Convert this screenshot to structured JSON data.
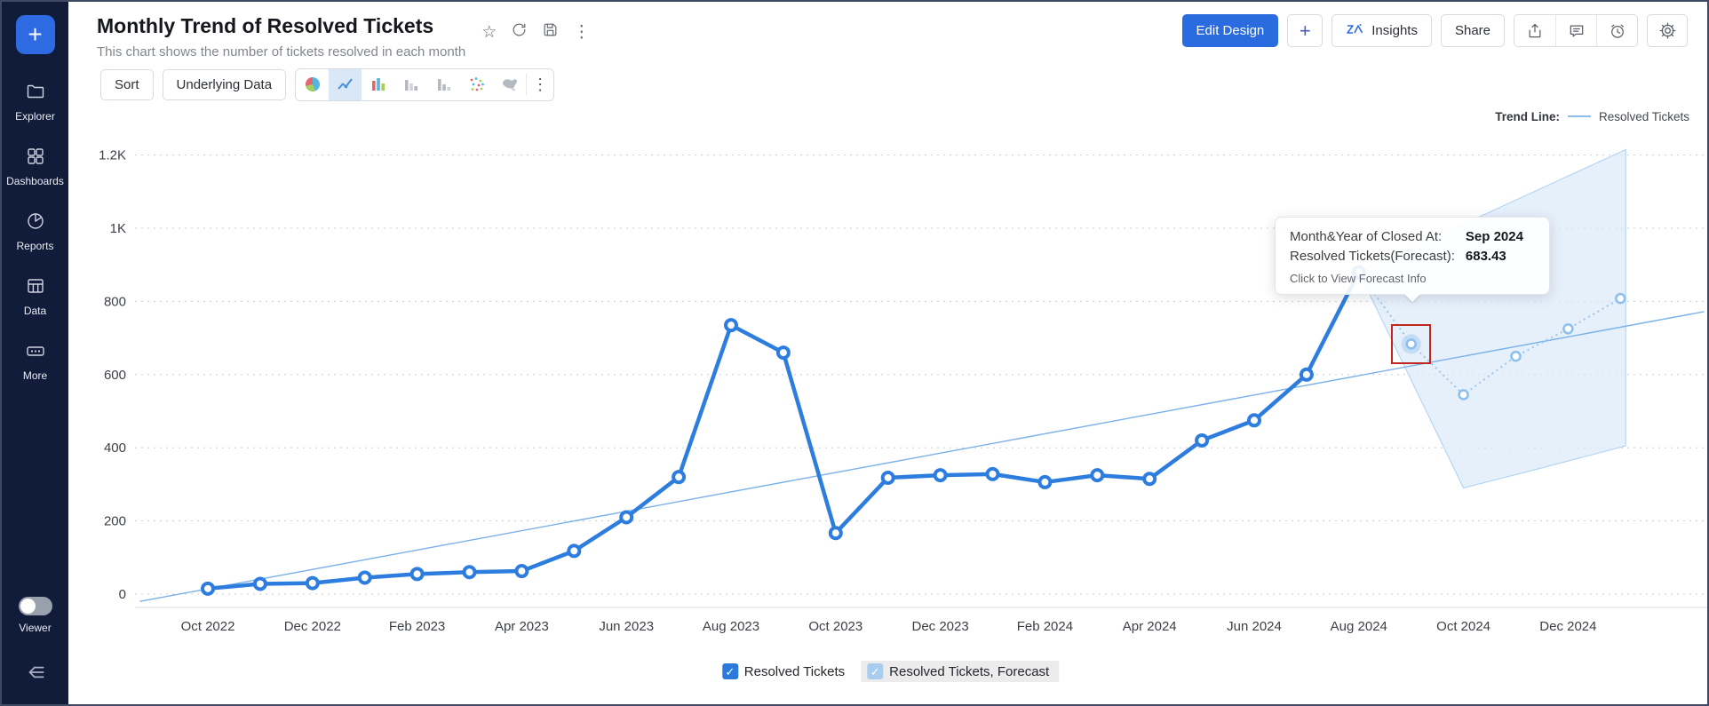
{
  "icons": {
    "star": "☆",
    "kebab": "⋮",
    "more_menu": "⋮",
    "check": "✓"
  },
  "sidebar": {
    "add_label": "+",
    "items": [
      {
        "id": "explorer",
        "label": "Explorer"
      },
      {
        "id": "dashboards",
        "label": "Dashboards"
      },
      {
        "id": "reports",
        "label": "Reports"
      },
      {
        "id": "data",
        "label": "Data"
      },
      {
        "id": "more",
        "label": "More"
      }
    ],
    "viewer_label": "Viewer"
  },
  "header": {
    "title": "Monthly Trend of Resolved Tickets",
    "subtitle": "This chart shows the number of tickets resolved in each month",
    "actions": {
      "edit_design": "Edit Design",
      "add": "+",
      "insights": "Insights",
      "share": "Share"
    }
  },
  "toolbar": {
    "sort_label": "Sort",
    "underlying_data_label": "Underlying Data"
  },
  "trend_line_legend": {
    "label": "Trend Line:",
    "series": "Resolved Tickets"
  },
  "tooltip": {
    "row1_label": "Month&Year of Closed At:",
    "row1_value": "Sep 2024",
    "row2_label": "Resolved Tickets(Forecast):",
    "row2_value": "683.43",
    "footer": "Click to View Forecast Info"
  },
  "legend": {
    "items": [
      "Resolved Tickets",
      "Resolved Tickets, Forecast"
    ]
  },
  "colors": {
    "accent": "#2a6bdf",
    "line": "#2d7dde",
    "forecast": "#9cc5ec",
    "forecast_marker": "#8fc0ec",
    "band": "#dbeafa",
    "trend": "#7ab1e8",
    "selection_box": "#c2271f",
    "sidebar_bg": "#101c3a",
    "checkbox_full": "#2b7bdd",
    "checkbox_light": "#a9cdf1"
  },
  "chart_data": {
    "type": "line",
    "title": "Monthly Trend of Resolved Tickets",
    "xlabel": "Month&Year of Closed At",
    "ylabel": "Resolved Tickets",
    "ylim": [
      0,
      1200
    ],
    "grid": true,
    "legend_position": "bottom",
    "months": [
      "Oct 2022",
      "Nov 2022",
      "Dec 2022",
      "Jan 2023",
      "Feb 2023",
      "Mar 2023",
      "Apr 2023",
      "May 2023",
      "Jun 2023",
      "Jul 2023",
      "Aug 2023",
      "Sep 2023",
      "Oct 2023",
      "Nov 2023",
      "Dec 2023",
      "Jan 2024",
      "Feb 2024",
      "Mar 2024",
      "Apr 2024",
      "May 2024",
      "Jun 2024",
      "Jul 2024",
      "Aug 2024",
      "Sep 2024",
      "Oct 2024",
      "Nov 2024",
      "Dec 2024",
      "Jan 2025"
    ],
    "series": [
      {
        "name": "Resolved Tickets",
        "style": "solid",
        "values": [
          15,
          28,
          30,
          45,
          55,
          60,
          63,
          118,
          210,
          320,
          735,
          660,
          167,
          318,
          325,
          328,
          306,
          325,
          315,
          420,
          475,
          600,
          880
        ]
      },
      {
        "name": "Resolved Tickets, Forecast",
        "style": "dotted",
        "points": [
          [
            22,
            880
          ],
          [
            23,
            683.43
          ],
          [
            24,
            545
          ],
          [
            25,
            650
          ],
          [
            26,
            725
          ],
          [
            27,
            808
          ]
        ]
      }
    ],
    "trend_line": {
      "name": "Trend Line (Resolved Tickets)",
      "from": [
        -1.3,
        -20
      ],
      "to": [
        28.6,
        772
      ]
    },
    "forecast_band": {
      "polygon": [
        [
          22,
          880
        ],
        [
          27.1,
          1215
        ],
        [
          27.1,
          405
        ],
        [
          25.5,
          345
        ],
        [
          24,
          290
        ]
      ]
    },
    "selected_point": {
      "series": "Resolved Tickets, Forecast",
      "month": "Sep 2024",
      "month_index": 23,
      "value": 683.43
    },
    "yticks": [
      {
        "value": 0,
        "label": "0"
      },
      {
        "value": 200,
        "label": "200"
      },
      {
        "value": 400,
        "label": "400"
      },
      {
        "value": 600,
        "label": "600"
      },
      {
        "value": 800,
        "label": "800"
      },
      {
        "value": 1000,
        "label": "1K"
      },
      {
        "value": 1200,
        "label": "1.2K"
      }
    ],
    "xticks": [
      {
        "index": 0,
        "label": "Oct 2022"
      },
      {
        "index": 2,
        "label": "Dec 2022"
      },
      {
        "index": 4,
        "label": "Feb 2023"
      },
      {
        "index": 6,
        "label": "Apr 2023"
      },
      {
        "index": 8,
        "label": "Jun 2023"
      },
      {
        "index": 10,
        "label": "Aug 2023"
      },
      {
        "index": 12,
        "label": "Oct 2023"
      },
      {
        "index": 14,
        "label": "Dec 2023"
      },
      {
        "index": 16,
        "label": "Feb 2024"
      },
      {
        "index": 18,
        "label": "Apr 2024"
      },
      {
        "index": 20,
        "label": "Jun 2024"
      },
      {
        "index": 22,
        "label": "Aug 2024"
      },
      {
        "index": 24,
        "label": "Oct 2024"
      },
      {
        "index": 26,
        "label": "Dec 2024"
      }
    ]
  }
}
